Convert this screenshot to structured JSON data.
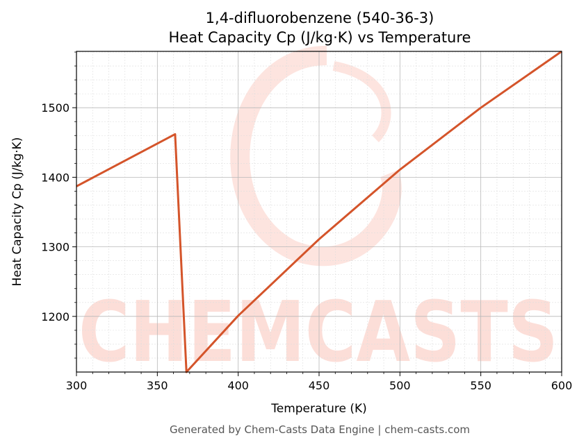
{
  "chart_data": {
    "type": "line",
    "title": "1,4-difluorobenzene (540-36-3)",
    "subtitle": "Heat Capacity Cp (J/kg·K) vs Temperature",
    "xlabel": "Temperature (K)",
    "ylabel": "Heat Capacity Cp (J/kg·K)",
    "xlim": [
      300,
      600
    ],
    "ylim": [
      1120,
      1581
    ],
    "xticks": [
      300,
      350,
      400,
      450,
      500,
      550,
      600
    ],
    "yticks": [
      1200,
      1300,
      1400,
      1500
    ],
    "grid": true,
    "line_color": "#d4542a",
    "series": [
      {
        "x": [
          300,
          361,
          368,
          400,
          450,
          500,
          550,
          600
        ],
        "y": [
          1387,
          1462,
          1120,
          1201,
          1311,
          1411,
          1500,
          1581
        ]
      }
    ]
  },
  "watermark": "CHEMCASTS",
  "footer": "Generated by Chem-Casts Data Engine | chem-casts.com"
}
